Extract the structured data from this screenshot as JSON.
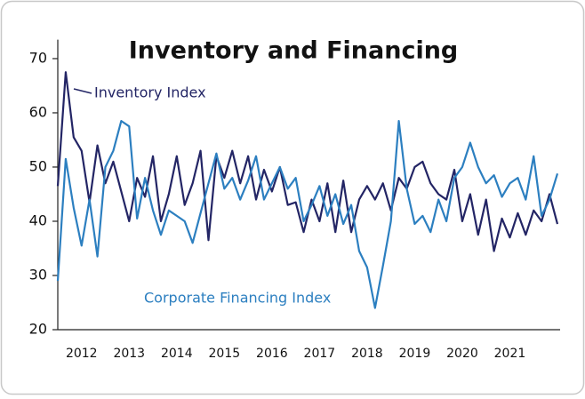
{
  "chart_data": {
    "type": "line",
    "title": "Inventory and Financing",
    "annotations": [
      "Inventory Index",
      "Corporate Financing Index"
    ],
    "categories": [
      null,
      null,
      null,
      "2012",
      null,
      null,
      null,
      null,
      null,
      "2013",
      null,
      null,
      null,
      null,
      null,
      "2014",
      null,
      null,
      null,
      null,
      null,
      "2015",
      null,
      null,
      null,
      null,
      null,
      "2016",
      null,
      null,
      null,
      null,
      null,
      "2017",
      null,
      null,
      null,
      null,
      null,
      "2018",
      null,
      null,
      null,
      null,
      null,
      "2019",
      null,
      null,
      null,
      null,
      null,
      "2020",
      null,
      null,
      null,
      null,
      null,
      "2021",
      null,
      null,
      null,
      null,
      null,
      null
    ],
    "series": [
      {
        "name": "Inventory Index",
        "color": "#232565",
        "values": [
          46.5,
          67.5,
          55.5,
          53,
          43.5,
          54,
          47,
          51,
          45.5,
          40,
          48,
          44.5,
          52,
          40,
          45,
          52,
          43,
          47,
          53,
          36.5,
          52,
          48,
          53,
          47,
          52,
          44,
          49.5,
          45.5,
          50,
          43,
          43.5,
          38,
          44,
          40,
          47,
          38,
          47.5,
          38,
          44,
          46.5,
          44,
          47,
          42,
          48,
          46,
          50,
          51,
          47,
          45,
          44,
          49.5,
          40,
          45,
          37.5,
          44,
          34.5,
          40.5,
          37,
          41.5,
          37.5,
          42,
          40,
          45,
          39.5
        ]
      },
      {
        "name": "Corporate Financing Index",
        "color": "#2c7fc0",
        "values": [
          29,
          51.5,
          42.5,
          35.5,
          44,
          33.5,
          50,
          53,
          58.5,
          57.5,
          40.5,
          48,
          42,
          37.5,
          42,
          41,
          40,
          36,
          41.5,
          47,
          52.5,
          46,
          48,
          44,
          47.5,
          52,
          44,
          47,
          50,
          46,
          48,
          40,
          43,
          46.5,
          41,
          45,
          39.5,
          43,
          34.5,
          31.5,
          24,
          31.8,
          40,
          58.5,
          46,
          39.5,
          41,
          38,
          44,
          40,
          48,
          50,
          54.5,
          50,
          47,
          48.5,
          44.5,
          47,
          48,
          44,
          52,
          41,
          44,
          48.8
        ]
      }
    ],
    "ylim": [
      20,
      73.5
    ],
    "yticks": [
      20,
      30,
      40,
      50,
      60,
      70
    ]
  }
}
